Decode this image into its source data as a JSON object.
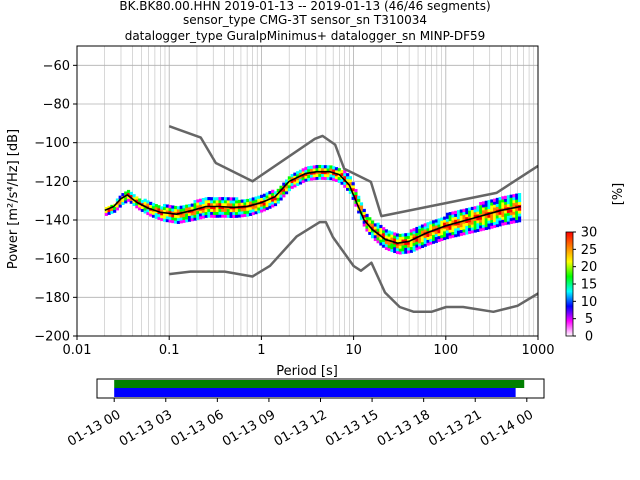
{
  "title_lines": [
    "BK.BK80.00.HHN   2019-01-13 -- 2019-01-13  (46/46 segments)",
    "sensor_type CMG-3T sensor_sn T310034",
    "datalogger_type GuralpMinimus+ datalogger_sn MINP-DF59"
  ],
  "chart_data": {
    "type": "heatmap",
    "xlabel": "Period [s]",
    "ylabel": "Power [m²/s⁴/Hz] [dB]",
    "x_scale": "log",
    "xlim": [
      0.01,
      1000
    ],
    "ylim": [
      -200,
      -50
    ],
    "x_ticks": [
      {
        "value": 0.01,
        "label": "0.01"
      },
      {
        "value": 0.1,
        "label": "0.1"
      },
      {
        "value": 1,
        "label": "1"
      },
      {
        "value": 10,
        "label": "10"
      },
      {
        "value": 100,
        "label": "100"
      },
      {
        "value": 1000,
        "label": "1000"
      }
    ],
    "y_ticks": [
      -60,
      -80,
      -100,
      -120,
      -140,
      -160,
      -180,
      -200
    ],
    "grid": true,
    "colorbar": {
      "label": "[%]",
      "min": 0,
      "max": 30,
      "ticks": [
        0,
        5,
        10,
        15,
        20,
        25,
        30
      ],
      "colors": [
        "#ffffff",
        "#ff00ff",
        "#0000ff",
        "#00ffff",
        "#00ff00",
        "#ffff00",
        "#ff8000",
        "#ff0000"
      ]
    },
    "high_noise_model": [
      [
        0.1,
        -91.5
      ],
      [
        0.22,
        -97.4
      ],
      [
        0.32,
        -110.5
      ],
      [
        0.8,
        -120
      ],
      [
        3.8,
        -98
      ],
      [
        4.6,
        -96.5
      ],
      [
        6.3,
        -101
      ],
      [
        7.9,
        -113.5
      ],
      [
        15.4,
        -120.3
      ],
      [
        20,
        -138
      ],
      [
        354.8,
        -126
      ],
      [
        1000,
        -112
      ]
    ],
    "low_noise_model": [
      [
        0.1,
        -168
      ],
      [
        0.17,
        -166.7
      ],
      [
        0.4,
        -166.7
      ],
      [
        0.8,
        -169.2
      ],
      [
        1.24,
        -163.7
      ],
      [
        2.4,
        -148.6
      ],
      [
        4.3,
        -141.1
      ],
      [
        5,
        -141.1
      ],
      [
        6,
        -149
      ],
      [
        10,
        -163.8
      ],
      [
        12,
        -166.2
      ],
      [
        15.6,
        -162.1
      ],
      [
        21.9,
        -177.5
      ],
      [
        31.6,
        -185
      ],
      [
        45,
        -187.5
      ],
      [
        70,
        -187.5
      ],
      [
        101,
        -185
      ],
      [
        154,
        -185
      ],
      [
        328,
        -187.5
      ],
      [
        600,
        -184.4
      ],
      [
        1000,
        -178
      ]
    ],
    "mode_curve": [
      [
        0.02,
        -135
      ],
      [
        0.025,
        -133
      ],
      [
        0.03,
        -129
      ],
      [
        0.035,
        -127
      ],
      [
        0.045,
        -131
      ],
      [
        0.06,
        -134
      ],
      [
        0.08,
        -136
      ],
      [
        0.12,
        -137
      ],
      [
        0.18,
        -135
      ],
      [
        0.25,
        -133
      ],
      [
        0.35,
        -133
      ],
      [
        0.5,
        -133.5
      ],
      [
        0.7,
        -133
      ],
      [
        1.0,
        -131
      ],
      [
        1.4,
        -128
      ],
      [
        2.0,
        -120
      ],
      [
        3.0,
        -116
      ],
      [
        4.0,
        -115
      ],
      [
        5.5,
        -115
      ],
      [
        7.0,
        -116.5
      ],
      [
        9.0,
        -122
      ],
      [
        11,
        -132
      ],
      [
        13,
        -140
      ],
      [
        16,
        -145
      ],
      [
        22,
        -150
      ],
      [
        30,
        -152
      ],
      [
        40,
        -151
      ],
      [
        60,
        -147
      ],
      [
        100,
        -143
      ],
      [
        200,
        -139
      ],
      [
        400,
        -135
      ],
      [
        650,
        -133
      ]
    ],
    "segment_spread_db": [
      [
        0.02,
        2
      ],
      [
        0.05,
        3
      ],
      [
        0.1,
        4
      ],
      [
        0.3,
        5
      ],
      [
        1.0,
        4
      ],
      [
        3.0,
        3
      ],
      [
        10,
        4
      ],
      [
        30,
        5
      ],
      [
        100,
        6
      ],
      [
        300,
        7
      ],
      [
        650,
        7
      ]
    ],
    "timeline": {
      "tick_labels": [
        "01-13 00",
        "01-13 03",
        "01-13 06",
        "01-13 09",
        "01-13 12",
        "01-13 15",
        "01-13 18",
        "01-13 21",
        "01-14 00"
      ],
      "range_hours": [
        -1.0,
        25.0
      ],
      "data_coverage_hours": [
        0.0,
        23.85
      ],
      "psd_coverage_hours": [
        0.0,
        23.35
      ],
      "colors": {
        "data": "#008000",
        "psd": "#0000ff"
      }
    }
  }
}
